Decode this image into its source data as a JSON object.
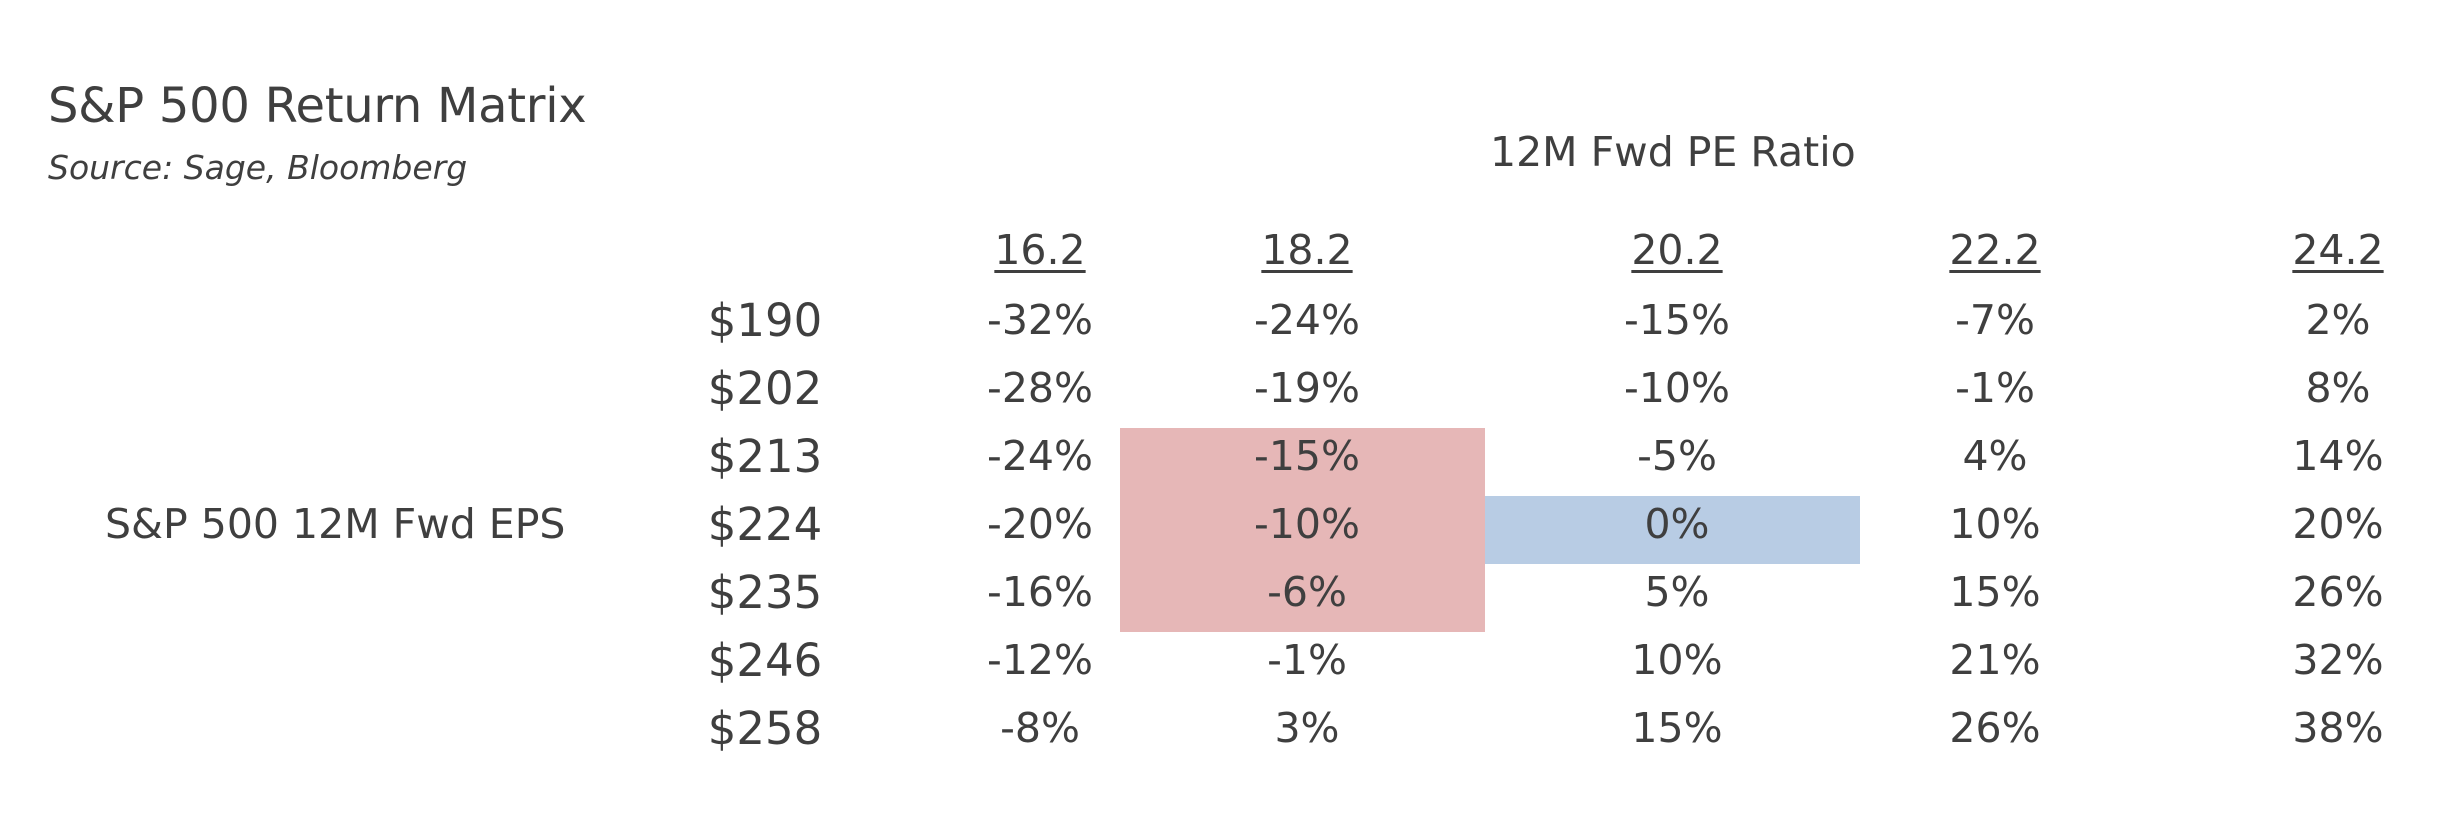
{
  "title": "S&P 500 Return Matrix",
  "source": "Source: Sage, Bloomberg",
  "chart_data": {
    "type": "table",
    "column_axis_label": "12M Fwd PE Ratio",
    "row_axis_label": "S&P 500 12M Fwd EPS",
    "columns": [
      "16.2",
      "18.2",
      "20.2",
      "22.2",
      "24.2"
    ],
    "rows": [
      "$190",
      "$202",
      "$213",
      "$224",
      "$235",
      "$246",
      "$258"
    ],
    "values": [
      [
        "-32%",
        "-24%",
        "-15%",
        "-7%",
        "2%"
      ],
      [
        "-28%",
        "-19%",
        "-10%",
        "-1%",
        "8%"
      ],
      [
        "-24%",
        "-15%",
        "-5%",
        "4%",
        "14%"
      ],
      [
        "-20%",
        "-10%",
        "0%",
        "10%",
        "20%"
      ],
      [
        "-16%",
        "-6%",
        "5%",
        "15%",
        "26%"
      ],
      [
        "-12%",
        "-1%",
        "10%",
        "21%",
        "32%"
      ],
      [
        "-8%",
        "3%",
        "15%",
        "26%",
        "38%"
      ]
    ],
    "highlights": [
      {
        "rows": [
          2,
          4
        ],
        "cols": [
          1,
          1
        ],
        "color": "#e6b7b7"
      },
      {
        "rows": [
          3,
          3
        ],
        "cols": [
          2,
          2
        ],
        "color": "#b8cce4"
      }
    ]
  }
}
